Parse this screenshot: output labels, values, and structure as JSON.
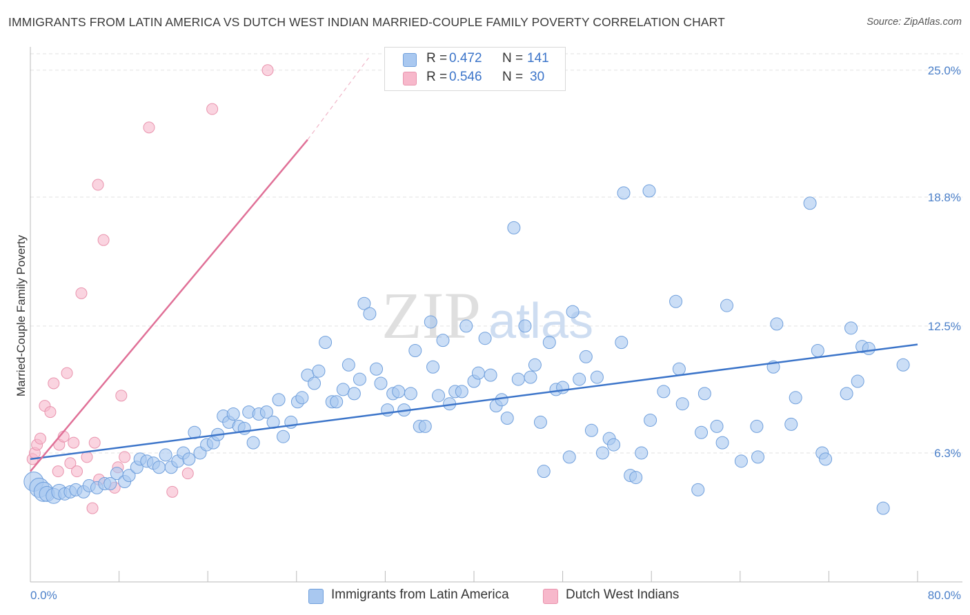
{
  "header": {
    "title": "IMMIGRANTS FROM LATIN AMERICA VS DUTCH WEST INDIAN MARRIED-COUPLE FAMILY POVERTY CORRELATION CHART",
    "source": "Source: ZipAtlas.com"
  },
  "watermark": {
    "zip": "ZIP",
    "atlas": "atlas"
  },
  "legend": {
    "rows": [
      {
        "r_label": "R =",
        "r_value": "0.472",
        "n_label": "N =",
        "n_value": "141",
        "color": "#a9c8f0"
      },
      {
        "r_label": "R =",
        "r_value": "0.546",
        "n_label": "N =",
        "n_value": "30",
        "color": "#f7b8cb"
      }
    ]
  },
  "bottom_legend": {
    "items": [
      {
        "label": "Immigrants from Latin America",
        "color": "#a9c8f0"
      },
      {
        "label": "Dutch West Indians",
        "color": "#f7b8cb"
      }
    ]
  },
  "chart_data": {
    "type": "scatter",
    "title": "IMMIGRANTS FROM LATIN AMERICA VS DUTCH WEST INDIAN MARRIED-COUPLE FAMILY POVERTY CORRELATION CHART",
    "ylabel": "Married-Couple Family Poverty",
    "xlabel": "",
    "xlim": [
      0,
      80
    ],
    "ylim": [
      0,
      25.8
    ],
    "x_tick_labels": [
      "0.0%",
      "80.0%"
    ],
    "y_tick_values": [
      6.3,
      12.5,
      18.8,
      25.0
    ],
    "y_tick_labels": [
      "6.3%",
      "12.5%",
      "18.8%",
      "25.0%"
    ],
    "grid": true,
    "legend_position": "top-center",
    "colors": {
      "blue_fill": "#a9c8f0",
      "blue_stroke": "#6f9fdc",
      "blue_line": "#3b74c9",
      "pink_fill": "#f7b8cb",
      "pink_stroke": "#e993ad",
      "pink_line": "#e07097",
      "tick_text": "#4a7fc9"
    },
    "series": [
      {
        "name": "Immigrants from Latin America",
        "color": "#a9c8f0",
        "r": 0.472,
        "n": 141,
        "trend": {
          "x": [
            0,
            80
          ],
          "y": [
            6.0,
            11.6
          ]
        },
        "points": [
          [
            0.3,
            4.9
          ],
          [
            0.8,
            4.6
          ],
          [
            1.2,
            4.4
          ],
          [
            1.5,
            4.3
          ],
          [
            2.1,
            4.2
          ],
          [
            2.6,
            4.4
          ],
          [
            3.1,
            4.3
          ],
          [
            3.6,
            4.4
          ],
          [
            4.1,
            4.5
          ],
          [
            4.8,
            4.4
          ],
          [
            5.3,
            4.7
          ],
          [
            6.0,
            4.6
          ],
          [
            6.7,
            4.8
          ],
          [
            7.2,
            4.8
          ],
          [
            7.8,
            5.3
          ],
          [
            8.5,
            4.9
          ],
          [
            8.9,
            5.2
          ],
          [
            9.6,
            5.6
          ],
          [
            9.9,
            6.0
          ],
          [
            10.5,
            5.9
          ],
          [
            11.1,
            5.8
          ],
          [
            11.6,
            5.6
          ],
          [
            12.2,
            6.2
          ],
          [
            12.7,
            5.6
          ],
          [
            13.3,
            5.9
          ],
          [
            13.8,
            6.3
          ],
          [
            14.3,
            6.0
          ],
          [
            14.8,
            7.3
          ],
          [
            15.3,
            6.3
          ],
          [
            15.9,
            6.7
          ],
          [
            16.5,
            6.8
          ],
          [
            16.9,
            7.2
          ],
          [
            17.4,
            8.1
          ],
          [
            17.9,
            7.8
          ],
          [
            18.3,
            8.2
          ],
          [
            18.8,
            7.6
          ],
          [
            19.3,
            7.5
          ],
          [
            19.7,
            8.3
          ],
          [
            20.1,
            6.8
          ],
          [
            20.6,
            8.2
          ],
          [
            21.3,
            8.3
          ],
          [
            21.9,
            7.8
          ],
          [
            22.4,
            8.9
          ],
          [
            22.8,
            7.1
          ],
          [
            23.5,
            7.8
          ],
          [
            24.1,
            8.8
          ],
          [
            24.5,
            9.0
          ],
          [
            25.0,
            10.1
          ],
          [
            25.6,
            9.7
          ],
          [
            26.0,
            10.3
          ],
          [
            26.6,
            11.7
          ],
          [
            27.2,
            8.8
          ],
          [
            27.6,
            8.8
          ],
          [
            28.2,
            9.4
          ],
          [
            28.7,
            10.6
          ],
          [
            29.2,
            9.2
          ],
          [
            29.7,
            9.9
          ],
          [
            30.1,
            13.6
          ],
          [
            30.6,
            13.1
          ],
          [
            31.2,
            10.4
          ],
          [
            31.6,
            9.7
          ],
          [
            32.2,
            8.4
          ],
          [
            32.7,
            9.2
          ],
          [
            33.2,
            9.3
          ],
          [
            33.7,
            8.4
          ],
          [
            34.3,
            9.2
          ],
          [
            34.7,
            11.3
          ],
          [
            35.1,
            7.6
          ],
          [
            35.6,
            7.6
          ],
          [
            36.1,
            12.7
          ],
          [
            36.3,
            10.5
          ],
          [
            36.8,
            9.1
          ],
          [
            37.2,
            11.8
          ],
          [
            37.8,
            8.7
          ],
          [
            38.3,
            9.3
          ],
          [
            38.9,
            9.3
          ],
          [
            39.3,
            12.5
          ],
          [
            40.0,
            9.8
          ],
          [
            40.4,
            10.2
          ],
          [
            41.0,
            11.9
          ],
          [
            41.5,
            10.1
          ],
          [
            42.0,
            8.6
          ],
          [
            42.5,
            8.9
          ],
          [
            43.0,
            8.0
          ],
          [
            43.6,
            17.3
          ],
          [
            44.0,
            9.9
          ],
          [
            44.6,
            12.5
          ],
          [
            45.1,
            10.0
          ],
          [
            45.5,
            10.6
          ],
          [
            46.0,
            7.8
          ],
          [
            46.3,
            5.4
          ],
          [
            46.8,
            11.7
          ],
          [
            47.4,
            9.4
          ],
          [
            48.0,
            9.5
          ],
          [
            48.6,
            6.1
          ],
          [
            48.9,
            13.2
          ],
          [
            49.5,
            9.9
          ],
          [
            50.1,
            11.0
          ],
          [
            50.6,
            7.4
          ],
          [
            51.1,
            10.0
          ],
          [
            51.6,
            6.3
          ],
          [
            52.2,
            7.0
          ],
          [
            52.6,
            6.7
          ],
          [
            53.3,
            11.7
          ],
          [
            53.5,
            19.0
          ],
          [
            54.1,
            5.2
          ],
          [
            54.6,
            5.1
          ],
          [
            55.1,
            6.3
          ],
          [
            55.8,
            19.1
          ],
          [
            55.9,
            7.9
          ],
          [
            57.1,
            9.3
          ],
          [
            58.2,
            13.7
          ],
          [
            58.5,
            10.4
          ],
          [
            58.8,
            8.7
          ],
          [
            60.2,
            4.5
          ],
          [
            60.5,
            7.3
          ],
          [
            60.8,
            9.2
          ],
          [
            61.9,
            7.6
          ],
          [
            62.4,
            6.8
          ],
          [
            62.8,
            13.5
          ],
          [
            64.1,
            5.9
          ],
          [
            65.5,
            7.6
          ],
          [
            65.6,
            6.1
          ],
          [
            67.0,
            10.5
          ],
          [
            67.3,
            12.6
          ],
          [
            68.6,
            7.7
          ],
          [
            69.0,
            9.0
          ],
          [
            70.3,
            18.5
          ],
          [
            71.0,
            11.3
          ],
          [
            71.4,
            6.3
          ],
          [
            71.7,
            6.0
          ],
          [
            73.6,
            9.2
          ],
          [
            74.0,
            12.4
          ],
          [
            74.6,
            9.8
          ],
          [
            75.0,
            11.5
          ],
          [
            75.6,
            11.4
          ],
          [
            76.9,
            3.6
          ],
          [
            78.7,
            10.6
          ]
        ]
      },
      {
        "name": "Dutch West Indians",
        "color": "#f7b8cb",
        "r": 0.546,
        "n": 30,
        "trend": {
          "x": [
            0,
            25
          ],
          "y": [
            5.4,
            21.6
          ]
        },
        "trend_dashed": {
          "x": [
            25,
            30.5
          ],
          "y": [
            21.6,
            25.6
          ]
        },
        "points": [
          [
            0.2,
            6.0
          ],
          [
            0.4,
            6.3
          ],
          [
            0.6,
            6.7
          ],
          [
            0.9,
            7.0
          ],
          [
            1.3,
            8.6
          ],
          [
            1.8,
            8.3
          ],
          [
            2.1,
            9.7
          ],
          [
            2.5,
            5.4
          ],
          [
            2.6,
            6.7
          ],
          [
            3.0,
            7.1
          ],
          [
            3.3,
            10.2
          ],
          [
            3.6,
            5.8
          ],
          [
            3.9,
            6.8
          ],
          [
            4.2,
            5.4
          ],
          [
            4.6,
            14.1
          ],
          [
            5.1,
            6.1
          ],
          [
            5.6,
            3.6
          ],
          [
            5.8,
            6.8
          ],
          [
            6.1,
            19.4
          ],
          [
            6.2,
            5.0
          ],
          [
            6.6,
            16.7
          ],
          [
            7.6,
            4.6
          ],
          [
            7.9,
            5.6
          ],
          [
            8.2,
            9.1
          ],
          [
            8.5,
            6.1
          ],
          [
            10.7,
            22.2
          ],
          [
            12.8,
            4.4
          ],
          [
            14.2,
            5.3
          ],
          [
            16.4,
            23.1
          ],
          [
            21.4,
            25.0
          ]
        ]
      }
    ]
  }
}
